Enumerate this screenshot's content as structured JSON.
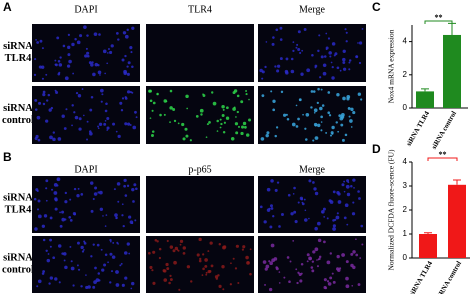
{
  "panel_labels": [
    "A",
    "B",
    "C",
    "D"
  ],
  "microscopy": [
    {
      "columns": [
        "DAPI",
        "TLR4",
        "Merge"
      ],
      "rows": [
        "siRNA TLR4",
        "siRNA control"
      ]
    },
    {
      "columns": [
        "DAPI",
        "p-p65",
        "Merge"
      ],
      "rows": [
        "siRNA TLR4",
        "siRNA control"
      ]
    }
  ],
  "chart_data": [
    {
      "type": "bar",
      "y_label": "Nox4 mRNA expression",
      "categories": [
        "siRNA TLR4",
        "siRNA control"
      ],
      "values": [
        1.0,
        4.4
      ],
      "errors": [
        0.15,
        0.7
      ],
      "color": "#1f8a1f",
      "ylim": [
        0,
        5
      ],
      "yticks": [
        0,
        2,
        4
      ],
      "significance": "**"
    },
    {
      "type": "bar",
      "y_label": "Normalized DCFDA fluore-scence (FU)",
      "categories": [
        "siRNA TLR4",
        "siRNA control"
      ],
      "values": [
        1.0,
        3.05
      ],
      "errors": [
        0.05,
        0.2
      ],
      "color": "#f01818",
      "ylim": [
        0,
        4
      ],
      "yticks": [
        0,
        1,
        2,
        3,
        4
      ],
      "significance": "**"
    }
  ]
}
